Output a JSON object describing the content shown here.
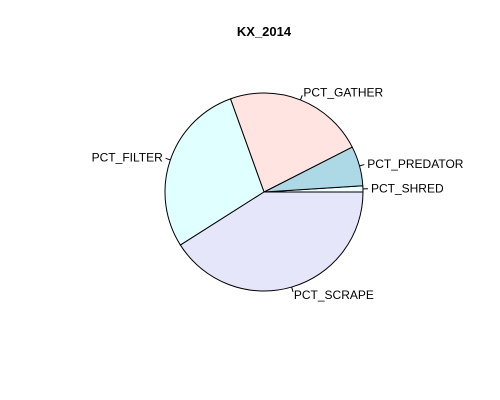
{
  "chart_data": {
    "type": "pie",
    "title": "KX_2014",
    "slices": [
      {
        "label": "PCT_SHRED",
        "value": 1.0,
        "color": "#F0FFFF"
      },
      {
        "label": "PCT_PREDATOR",
        "value": 6.5,
        "color": "#ADD8E6"
      },
      {
        "label": "PCT_GATHER",
        "value": 23.0,
        "color": "#FFE4E1"
      },
      {
        "label": "PCT_FILTER",
        "value": 28.5,
        "color": "#E0FFFF"
      },
      {
        "label": "PCT_SCRAPE",
        "value": 41.0,
        "color": "#E6E6FA"
      }
    ],
    "start": "3 o'clock",
    "direction": "counterclockwise"
  }
}
